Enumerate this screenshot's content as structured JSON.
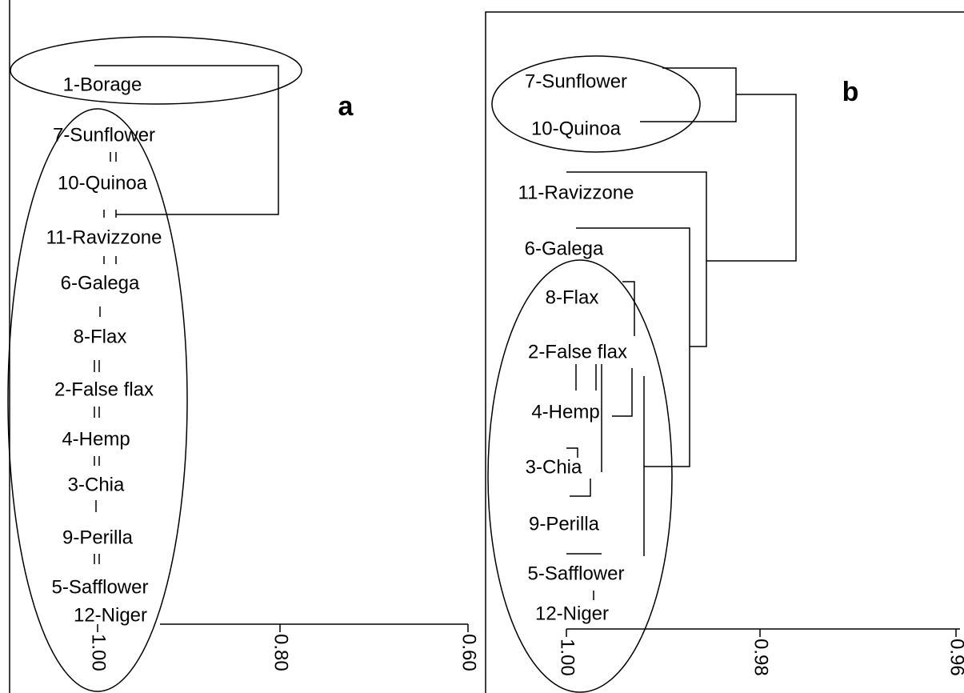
{
  "panels": [
    {
      "label": "a",
      "leaves": [
        "1-Borage",
        "7-Sunflower",
        "10-Quinoa",
        "11-Ravizzone",
        "6-Galega",
        "8-Flax",
        "2-False flax",
        "4-Hemp",
        "3-Chia",
        "9-Perilla",
        "5-Safflower",
        "12-Niger"
      ],
      "ticks": [
        "1.00",
        "0.80",
        "0.60"
      ]
    },
    {
      "label": "b",
      "leaves": [
        "7-Sunflower",
        "10-Quinoa",
        "11-Ravizzone",
        "6-Galega",
        "8-Flax",
        "2-False flax",
        "4-Hemp",
        "3-Chia",
        "9-Perilla",
        "5-Safflower",
        "12-Niger"
      ],
      "ticks": [
        "1.00",
        "0.98",
        "0.96"
      ]
    }
  ]
}
